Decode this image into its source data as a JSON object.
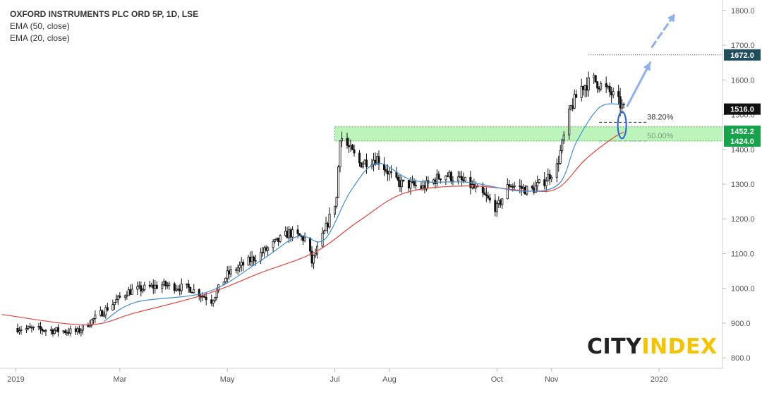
{
  "chart_data": {
    "type": "candlestick",
    "title": "OXFORD INSTRUMENTS PLC ORD 5P, 1D, LSE",
    "indicators": [
      {
        "name": "EMA (50, close)",
        "color": "#e5443d"
      },
      {
        "name": "EMA (20, close)",
        "color": "#3f8fd6"
      }
    ],
    "yaxis": {
      "ticks": [
        "800.0",
        "900.0",
        "1000.0",
        "1100.0",
        "1200.0",
        "1300.0",
        "1400.0",
        "1500.0",
        "1600.0",
        "1700.0",
        "1800.0"
      ],
      "range": [
        770,
        1830
      ]
    },
    "xaxis": {
      "ticks": [
        {
          "label": "2019",
          "date": "2019-01-01"
        },
        {
          "label": "Mar",
          "date": "2019-03-01"
        },
        {
          "label": "May",
          "date": "2019-05-01"
        },
        {
          "label": "Jul",
          "date": "2019-07-01"
        },
        {
          "label": "Aug",
          "date": "2019-08-01"
        },
        {
          "label": "Oct",
          "date": "2019-10-01"
        },
        {
          "label": "Nov",
          "date": "2019-11-01"
        },
        {
          "label": "2020",
          "date": "2020-01-01"
        }
      ],
      "range": [
        "2018-12-23",
        "2020-02-06"
      ]
    },
    "price_labels": [
      {
        "text": "1672.0",
        "value": 1672,
        "bg": "#1f4e5f"
      },
      {
        "text": "1516.0",
        "value": 1516,
        "bg": "#111111"
      },
      {
        "text": "1452.2",
        "value": 1452.2,
        "bg": "#16a34a"
      },
      {
        "text": "1424.0",
        "value": 1424,
        "bg": "#16a34a"
      }
    ],
    "zone": {
      "low": 1424,
      "high": 1465,
      "from": "2019-07-01",
      "to": "2020-02-06",
      "color": "#a6f0a6"
    },
    "fib_levels": [
      {
        "label": "38.20%",
        "value": 1478
      },
      {
        "label": "50.00%",
        "value": 1424
      }
    ],
    "highline": {
      "value": 1672,
      "from": "2019-11-22"
    },
    "keypoints": [
      {
        "date": "2019-01-02",
        "value": 885
      },
      {
        "date": "2019-01-20",
        "value": 880
      },
      {
        "date": "2019-02-05",
        "value": 875
      },
      {
        "date": "2019-02-20",
        "value": 935
      },
      {
        "date": "2019-03-05",
        "value": 990
      },
      {
        "date": "2019-03-25",
        "value": 1010
      },
      {
        "date": "2019-04-10",
        "value": 1000
      },
      {
        "date": "2019-04-22",
        "value": 965
      },
      {
        "date": "2019-05-01",
        "value": 1040
      },
      {
        "date": "2019-05-20",
        "value": 1100
      },
      {
        "date": "2019-06-05",
        "value": 1160
      },
      {
        "date": "2019-06-15",
        "value": 1140
      },
      {
        "date": "2019-06-18",
        "value": 1075
      },
      {
        "date": "2019-06-25",
        "value": 1160
      },
      {
        "date": "2019-07-02",
        "value": 1260
      },
      {
        "date": "2019-07-04",
        "value": 1440
      },
      {
        "date": "2019-07-15",
        "value": 1360
      },
      {
        "date": "2019-07-25",
        "value": 1375
      },
      {
        "date": "2019-08-05",
        "value": 1305
      },
      {
        "date": "2019-08-20",
        "value": 1290
      },
      {
        "date": "2019-09-01",
        "value": 1330
      },
      {
        "date": "2019-09-15",
        "value": 1300
      },
      {
        "date": "2019-09-25",
        "value": 1260
      },
      {
        "date": "2019-10-01",
        "value": 1230
      },
      {
        "date": "2019-10-08",
        "value": 1300
      },
      {
        "date": "2019-10-20",
        "value": 1280
      },
      {
        "date": "2019-10-28",
        "value": 1310
      },
      {
        "date": "2019-11-04",
        "value": 1350
      },
      {
        "date": "2019-11-12",
        "value": 1520
      },
      {
        "date": "2019-11-18",
        "value": 1580
      },
      {
        "date": "2019-11-25",
        "value": 1600
      },
      {
        "date": "2019-12-05",
        "value": 1560
      },
      {
        "date": "2019-12-12",
        "value": 1516
      }
    ],
    "ema_points": {
      "ema50": [
        {
          "date": "2018-12-24",
          "value": 925
        },
        {
          "date": "2019-02-10",
          "value": 895
        },
        {
          "date": "2019-03-10",
          "value": 930
        },
        {
          "date": "2019-04-20",
          "value": 985
        },
        {
          "date": "2019-05-20",
          "value": 1045
        },
        {
          "date": "2019-06-20",
          "value": 1105
        },
        {
          "date": "2019-07-15",
          "value": 1195
        },
        {
          "date": "2019-08-10",
          "value": 1275
        },
        {
          "date": "2019-09-15",
          "value": 1295
        },
        {
          "date": "2019-10-20",
          "value": 1280
        },
        {
          "date": "2019-11-05",
          "value": 1290
        },
        {
          "date": "2019-11-20",
          "value": 1370
        },
        {
          "date": "2019-12-05",
          "value": 1430
        },
        {
          "date": "2019-12-12",
          "value": 1450
        }
      ],
      "ema20": [
        {
          "date": "2019-02-20",
          "value": 905
        },
        {
          "date": "2019-03-10",
          "value": 960
        },
        {
          "date": "2019-04-20",
          "value": 990
        },
        {
          "date": "2019-05-20",
          "value": 1080
        },
        {
          "date": "2019-06-10",
          "value": 1150
        },
        {
          "date": "2019-06-25",
          "value": 1140
        },
        {
          "date": "2019-07-10",
          "value": 1280
        },
        {
          "date": "2019-07-25",
          "value": 1360
        },
        {
          "date": "2019-08-15",
          "value": 1310
        },
        {
          "date": "2019-09-15",
          "value": 1305
        },
        {
          "date": "2019-10-15",
          "value": 1280
        },
        {
          "date": "2019-11-05",
          "value": 1300
        },
        {
          "date": "2019-11-15",
          "value": 1420
        },
        {
          "date": "2019-11-28",
          "value": 1520
        },
        {
          "date": "2019-12-10",
          "value": 1530
        }
      ]
    },
    "arrows": [
      {
        "from": {
          "date": "2019-12-14",
          "value": 1525
        },
        "to": {
          "date": "2019-12-27",
          "value": 1650
        },
        "style": "solid"
      },
      {
        "from": {
          "date": "2019-12-28",
          "value": 1695
        },
        "to": {
          "date": "2020-01-10",
          "value": 1790
        },
        "style": "dashed"
      }
    ],
    "ellipse": {
      "date": "2019-12-11",
      "value": 1470
    },
    "grid": false
  },
  "brand": {
    "part1": "CITY",
    "part2": "INDEX"
  }
}
